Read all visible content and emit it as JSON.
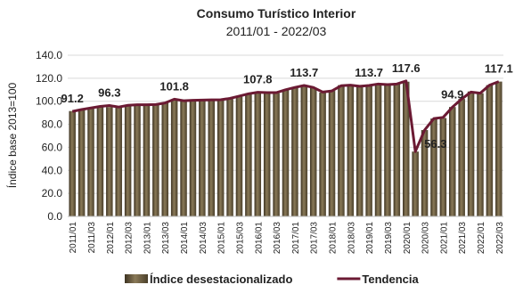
{
  "chart_data": {
    "type": "bar-line",
    "title": "Consumo Turístico Interior",
    "subtitle": "2011/01  -  2022/03",
    "y_axis_label": "Índice base 2013=100",
    "categories": [
      "2011/01",
      null,
      "2011/03",
      null,
      "2012/01",
      null,
      "2012/03",
      null,
      "2013/01",
      null,
      "2013/03",
      null,
      "2014/01",
      null,
      "2014/03",
      null,
      "2015/01",
      null,
      "2015/03",
      null,
      "2016/01",
      null,
      "2016/03",
      null,
      "2017/01",
      null,
      "2017/03",
      null,
      "2018/01",
      null,
      "2018/03",
      null,
      "2019/01",
      null,
      "2019/03",
      null,
      "2020/01",
      null,
      "2020/03",
      null,
      "2021/01",
      null,
      "2021/03",
      null,
      "2022/01",
      null,
      "2022/03"
    ],
    "ylim": [
      0,
      140
    ],
    "yticks": [
      {
        "value": 0,
        "label": "0.0"
      },
      {
        "value": 20,
        "label": "20.0"
      },
      {
        "value": 40,
        "label": "40.0"
      },
      {
        "value": 60,
        "label": "60.0"
      },
      {
        "value": 80,
        "label": "80.0"
      },
      {
        "value": 100,
        "label": "100.0"
      },
      {
        "value": 120,
        "label": "120.0"
      },
      {
        "value": 140,
        "label": "140.0"
      }
    ],
    "grid": true,
    "series": [
      {
        "name": "Índice desestacionalizado",
        "kind": "bar",
        "color": "#8a7a58",
        "values": [
          91.5,
          93.0,
          94.5,
          95.5,
          95.0,
          95.5,
          97.0,
          97.0,
          97.0,
          97.5,
          99.0,
          101.0,
          100.5,
          100.5,
          101.0,
          101.5,
          101.5,
          102.0,
          104.0,
          106.5,
          107.5,
          107.5,
          107.0,
          110.0,
          112.5,
          113.0,
          111.5,
          107.5,
          109.0,
          114.0,
          114.0,
          113.0,
          113.5,
          115.5,
          114.5,
          115.5,
          117.0,
          56.3,
          75.0,
          85.0,
          85.5,
          95.0,
          102.0,
          108.5,
          107.0,
          114.0,
          117.1
        ]
      },
      {
        "name": "Tendencia",
        "kind": "line",
        "color": "#6b1a33",
        "values": [
          91.2,
          92.8,
          94.2,
          95.5,
          96.3,
          95.0,
          96.5,
          97.0,
          97.0,
          97.2,
          98.5,
          101.8,
          100.5,
          100.8,
          101.0,
          101.2,
          101.3,
          102.5,
          104.5,
          106.5,
          107.8,
          107.5,
          107.5,
          110.0,
          112.0,
          113.7,
          112.0,
          108.0,
          109.0,
          113.5,
          114.0,
          113.0,
          113.7,
          115.0,
          114.5,
          115.0,
          117.6,
          56.3,
          75.0,
          85.0,
          86.0,
          94.9,
          102.0,
          108.0,
          107.0,
          114.0,
          117.1
        ],
        "value_labels": [
          "91.2",
          null,
          null,
          null,
          "96.3",
          null,
          null,
          null,
          null,
          null,
          null,
          "101.8",
          null,
          null,
          null,
          null,
          null,
          null,
          null,
          null,
          "107.8",
          null,
          null,
          null,
          null,
          "113.7",
          null,
          null,
          null,
          null,
          null,
          null,
          "113.7",
          null,
          null,
          null,
          "117.6",
          "56.3",
          null,
          null,
          null,
          "94.9",
          null,
          null,
          null,
          null,
          "117.1"
        ],
        "label_color": "#9b2d52"
      }
    ]
  }
}
